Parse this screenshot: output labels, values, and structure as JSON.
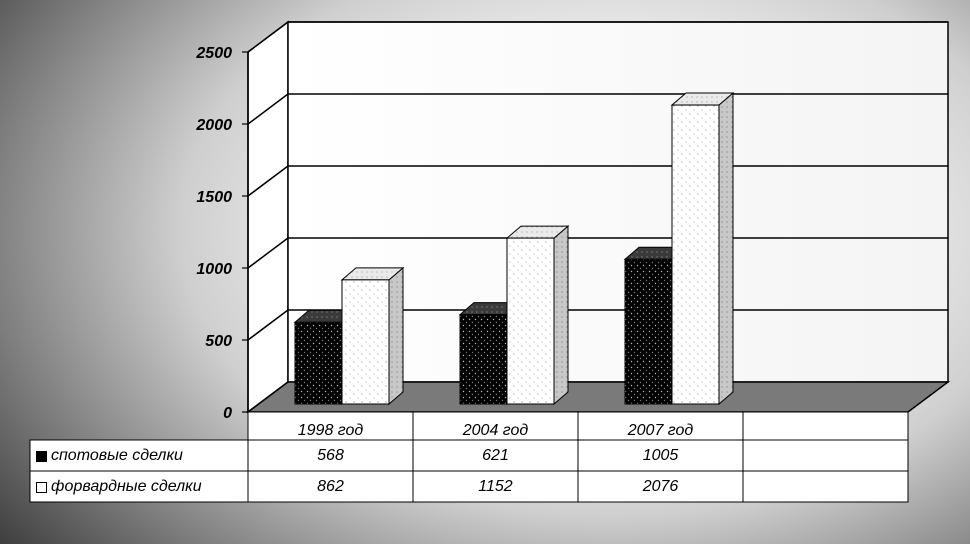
{
  "chart_data": {
    "type": "bar",
    "title": "",
    "xlabel": "",
    "ylabel": "",
    "categories": [
      "1998 год",
      "2004 год",
      "2007 год"
    ],
    "series": [
      {
        "name": "спотовые сделки",
        "values": [
          568,
          621,
          1005
        ],
        "color": "#000000",
        "pattern": "dotted-dark"
      },
      {
        "name": "форвардные сделки",
        "values": [
          862,
          1152,
          2076
        ],
        "color": "#ffffff",
        "pattern": "dotted-light"
      }
    ],
    "ylim": [
      0,
      2500
    ],
    "yticks": [
      0,
      500,
      1000,
      1500,
      2000,
      2500
    ],
    "grid": true,
    "three_d": true,
    "legend": "data-table-below",
    "data_table": true
  }
}
